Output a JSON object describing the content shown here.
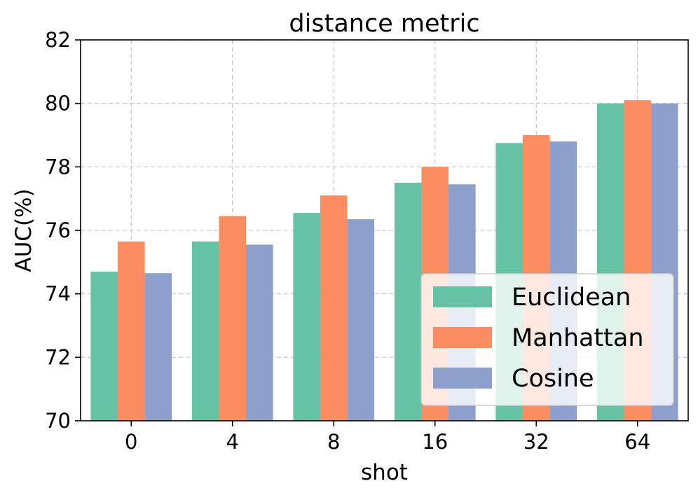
{
  "chart_data": {
    "type": "bar",
    "title": "distance metric",
    "xlabel": "shot",
    "ylabel": "AUC(%)",
    "ylim": [
      70,
      82
    ],
    "yticks": [
      70,
      72,
      74,
      76,
      78,
      80,
      82
    ],
    "categories": [
      "0",
      "4",
      "8",
      "16",
      "32",
      "64"
    ],
    "series": [
      {
        "name": "Euclidean",
        "color": "#66c2a5",
        "values": [
          74.7,
          75.65,
          76.55,
          77.5,
          78.75,
          80.0
        ]
      },
      {
        "name": "Manhattan",
        "color": "#fc8d62",
        "values": [
          75.65,
          76.45,
          77.1,
          78.0,
          79.0,
          80.1
        ]
      },
      {
        "name": "Cosine",
        "color": "#8da0cb",
        "values": [
          74.65,
          75.55,
          76.35,
          77.45,
          78.8,
          80.0
        ]
      }
    ],
    "grid": true,
    "legend_position": "lower-right"
  }
}
